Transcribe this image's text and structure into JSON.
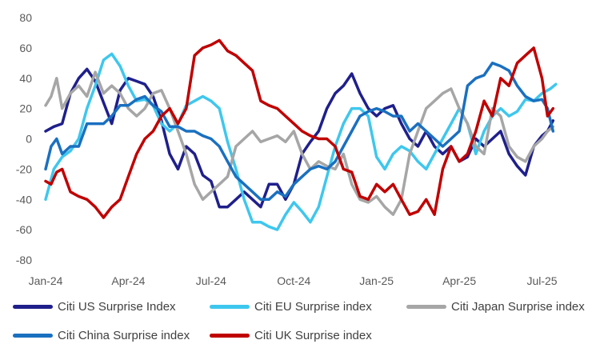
{
  "chart_data": {
    "type": "line",
    "title": "",
    "xlabel": "",
    "ylabel": "",
    "ylim": [
      -80,
      80
    ],
    "yticks": [
      80,
      60,
      40,
      20,
      0,
      -20,
      -40,
      -60,
      -80
    ],
    "xlim": [
      0,
      19
    ],
    "xticks": [
      {
        "label": "Jan-24",
        "x": 0
      },
      {
        "label": "Apr-24",
        "x": 3
      },
      {
        "label": "Jul-24",
        "x": 6
      },
      {
        "label": "Oct-24",
        "x": 9
      },
      {
        "label": "Jan-25",
        "x": 12
      },
      {
        "label": "Apr-25",
        "x": 15
      },
      {
        "label": "Jul-25",
        "x": 18
      }
    ],
    "x_unit": "months since Jan-2024",
    "series": [
      {
        "name": "Citi US Surprise Index",
        "color": "#1f1f8c",
        "points": [
          [
            0,
            5
          ],
          [
            0.3,
            8
          ],
          [
            0.6,
            10
          ],
          [
            0.9,
            30
          ],
          [
            1.2,
            40
          ],
          [
            1.5,
            46
          ],
          [
            1.8,
            38
          ],
          [
            2.1,
            24
          ],
          [
            2.4,
            10
          ],
          [
            2.7,
            32
          ],
          [
            3,
            40
          ],
          [
            3.3,
            38
          ],
          [
            3.6,
            36
          ],
          [
            3.9,
            28
          ],
          [
            4.2,
            12
          ],
          [
            4.5,
            -10
          ],
          [
            4.8,
            -20
          ],
          [
            5.1,
            -5
          ],
          [
            5.4,
            -10
          ],
          [
            5.7,
            -24
          ],
          [
            6,
            -28
          ],
          [
            6.3,
            -45
          ],
          [
            6.6,
            -45
          ],
          [
            6.9,
            -40
          ],
          [
            7.2,
            -35
          ],
          [
            7.5,
            -40
          ],
          [
            7.8,
            -45
          ],
          [
            8.1,
            -30
          ],
          [
            8.4,
            -30
          ],
          [
            8.7,
            -40
          ],
          [
            9,
            -30
          ],
          [
            9.3,
            -10
          ],
          [
            9.6,
            -2
          ],
          [
            9.9,
            5
          ],
          [
            10.2,
            20
          ],
          [
            10.5,
            30
          ],
          [
            10.8,
            35
          ],
          [
            11.1,
            43
          ],
          [
            11.4,
            30
          ],
          [
            11.7,
            20
          ],
          [
            12,
            15
          ],
          [
            12.3,
            20
          ],
          [
            12.6,
            22
          ],
          [
            12.9,
            10
          ],
          [
            13.2,
            0
          ],
          [
            13.5,
            -5
          ],
          [
            13.8,
            5
          ],
          [
            14.1,
            -5
          ],
          [
            14.4,
            -10
          ],
          [
            14.7,
            -5
          ],
          [
            15,
            -15
          ],
          [
            15.3,
            -12
          ],
          [
            15.6,
            0
          ],
          [
            15.9,
            -5
          ],
          [
            16.2,
            0
          ],
          [
            16.5,
            5
          ],
          [
            16.8,
            -10
          ],
          [
            17.1,
            -18
          ],
          [
            17.4,
            -24
          ],
          [
            17.7,
            -5
          ],
          [
            18,
            2
          ],
          [
            18.2,
            5
          ],
          [
            18.4,
            12
          ]
        ]
      },
      {
        "name": "Citi EU Surprise index",
        "color": "#3ec7ee",
        "points": [
          [
            0,
            -40
          ],
          [
            0.3,
            -20
          ],
          [
            0.6,
            -12
          ],
          [
            0.9,
            -8
          ],
          [
            1.2,
            0
          ],
          [
            1.5,
            20
          ],
          [
            1.8,
            35
          ],
          [
            2.1,
            52
          ],
          [
            2.4,
            56
          ],
          [
            2.7,
            48
          ],
          [
            3,
            35
          ],
          [
            3.3,
            25
          ],
          [
            3.6,
            26
          ],
          [
            3.9,
            22
          ],
          [
            4.2,
            10
          ],
          [
            4.5,
            5
          ],
          [
            4.8,
            10
          ],
          [
            5.1,
            22
          ],
          [
            5.4,
            25
          ],
          [
            5.7,
            28
          ],
          [
            6,
            25
          ],
          [
            6.3,
            20
          ],
          [
            6.6,
            -2
          ],
          [
            6.9,
            -20
          ],
          [
            7.2,
            -40
          ],
          [
            7.5,
            -55
          ],
          [
            7.8,
            -55
          ],
          [
            8.1,
            -58
          ],
          [
            8.4,
            -60
          ],
          [
            8.7,
            -50
          ],
          [
            9,
            -42
          ],
          [
            9.3,
            -48
          ],
          [
            9.6,
            -55
          ],
          [
            9.9,
            -45
          ],
          [
            10.2,
            -25
          ],
          [
            10.5,
            -5
          ],
          [
            10.8,
            10
          ],
          [
            11.1,
            20
          ],
          [
            11.4,
            20
          ],
          [
            11.7,
            15
          ],
          [
            12,
            -12
          ],
          [
            12.3,
            -20
          ],
          [
            12.6,
            -10
          ],
          [
            12.9,
            -5
          ],
          [
            13.2,
            -8
          ],
          [
            13.5,
            -15
          ],
          [
            13.8,
            -20
          ],
          [
            14.1,
            -10
          ],
          [
            14.4,
            0
          ],
          [
            14.7,
            10
          ],
          [
            15,
            20
          ],
          [
            15.3,
            10
          ],
          [
            15.6,
            -10
          ],
          [
            15.9,
            5
          ],
          [
            16.2,
            15
          ],
          [
            16.5,
            20
          ],
          [
            16.8,
            15
          ],
          [
            17.1,
            18
          ],
          [
            17.4,
            26
          ],
          [
            17.7,
            25
          ],
          [
            18,
            30
          ],
          [
            18.3,
            33
          ],
          [
            18.5,
            36
          ]
        ]
      },
      {
        "name": "Citi Japan Surprise index",
        "color": "#a6a6a6",
        "points": [
          [
            0,
            22
          ],
          [
            0.2,
            28
          ],
          [
            0.4,
            40
          ],
          [
            0.6,
            20
          ],
          [
            0.9,
            30
          ],
          [
            1.2,
            35
          ],
          [
            1.5,
            28
          ],
          [
            1.8,
            44
          ],
          [
            2.1,
            30
          ],
          [
            2.4,
            35
          ],
          [
            2.7,
            30
          ],
          [
            3,
            20
          ],
          [
            3.3,
            15
          ],
          [
            3.6,
            20
          ],
          [
            3.9,
            30
          ],
          [
            4.2,
            32
          ],
          [
            4.5,
            20
          ],
          [
            4.8,
            5
          ],
          [
            5.1,
            -10
          ],
          [
            5.4,
            -30
          ],
          [
            5.7,
            -40
          ],
          [
            6,
            -35
          ],
          [
            6.3,
            -30
          ],
          [
            6.6,
            -25
          ],
          [
            6.9,
            -5
          ],
          [
            7.2,
            0
          ],
          [
            7.5,
            5
          ],
          [
            7.8,
            -2
          ],
          [
            8.1,
            0
          ],
          [
            8.4,
            2
          ],
          [
            8.7,
            -2
          ],
          [
            9,
            5
          ],
          [
            9.3,
            -10
          ],
          [
            9.6,
            -20
          ],
          [
            9.9,
            -15
          ],
          [
            10.2,
            -18
          ],
          [
            10.5,
            -20
          ],
          [
            10.8,
            -10
          ],
          [
            11.1,
            -30
          ],
          [
            11.4,
            -40
          ],
          [
            11.7,
            -42
          ],
          [
            12,
            -38
          ],
          [
            12.3,
            -45
          ],
          [
            12.6,
            -50
          ],
          [
            12.9,
            -40
          ],
          [
            13.2,
            -10
          ],
          [
            13.5,
            5
          ],
          [
            13.8,
            20
          ],
          [
            14.1,
            25
          ],
          [
            14.4,
            30
          ],
          [
            14.7,
            33
          ],
          [
            15,
            20
          ],
          [
            15.3,
            10
          ],
          [
            15.6,
            -5
          ],
          [
            15.9,
            -10
          ],
          [
            16.2,
            20
          ],
          [
            16.5,
            15
          ],
          [
            16.8,
            -5
          ],
          [
            17.1,
            -12
          ],
          [
            17.4,
            -15
          ],
          [
            17.7,
            -5
          ],
          [
            18,
            0
          ],
          [
            18.2,
            5
          ],
          [
            18.4,
            8
          ]
        ]
      },
      {
        "name": "Citi China Surprise index",
        "color": "#1a70c0",
        "points": [
          [
            0,
            -20
          ],
          [
            0.2,
            -5
          ],
          [
            0.4,
            0
          ],
          [
            0.6,
            -10
          ],
          [
            0.9,
            -5
          ],
          [
            1.2,
            -5
          ],
          [
            1.5,
            10
          ],
          [
            1.8,
            10
          ],
          [
            2.1,
            10
          ],
          [
            2.4,
            15
          ],
          [
            2.7,
            22
          ],
          [
            3,
            22
          ],
          [
            3.3,
            26
          ],
          [
            3.6,
            28
          ],
          [
            3.9,
            22
          ],
          [
            4.2,
            18
          ],
          [
            4.5,
            8
          ],
          [
            4.8,
            8
          ],
          [
            5.1,
            5
          ],
          [
            5.4,
            5
          ],
          [
            5.7,
            2
          ],
          [
            6,
            0
          ],
          [
            6.3,
            -5
          ],
          [
            6.6,
            -15
          ],
          [
            6.9,
            -25
          ],
          [
            7.2,
            -30
          ],
          [
            7.5,
            -35
          ],
          [
            7.8,
            -40
          ],
          [
            8.1,
            -40
          ],
          [
            8.4,
            -35
          ],
          [
            8.7,
            -38
          ],
          [
            9,
            -30
          ],
          [
            9.3,
            -25
          ],
          [
            9.6,
            -20
          ],
          [
            9.9,
            -18
          ],
          [
            10.2,
            -20
          ],
          [
            10.5,
            -15
          ],
          [
            10.8,
            -5
          ],
          [
            11.1,
            5
          ],
          [
            11.4,
            15
          ],
          [
            11.7,
            18
          ],
          [
            12,
            20
          ],
          [
            12.3,
            18
          ],
          [
            12.6,
            15
          ],
          [
            12.9,
            15
          ],
          [
            13.2,
            5
          ],
          [
            13.5,
            10
          ],
          [
            13.8,
            5
          ],
          [
            14.1,
            0
          ],
          [
            14.4,
            -5
          ],
          [
            14.7,
            0
          ],
          [
            15,
            5
          ],
          [
            15.3,
            35
          ],
          [
            15.6,
            40
          ],
          [
            15.9,
            42
          ],
          [
            16.2,
            50
          ],
          [
            16.5,
            48
          ],
          [
            16.8,
            45
          ],
          [
            17.1,
            35
          ],
          [
            17.4,
            28
          ],
          [
            17.7,
            25
          ],
          [
            18,
            26
          ],
          [
            18.2,
            20
          ],
          [
            18.4,
            5
          ]
        ]
      },
      {
        "name": "Citi UK Surprise index",
        "color": "#c00000",
        "points": [
          [
            0,
            -28
          ],
          [
            0.2,
            -30
          ],
          [
            0.4,
            -22
          ],
          [
            0.6,
            -20
          ],
          [
            0.9,
            -35
          ],
          [
            1.2,
            -38
          ],
          [
            1.5,
            -40
          ],
          [
            1.8,
            -45
          ],
          [
            2.1,
            -52
          ],
          [
            2.4,
            -45
          ],
          [
            2.7,
            -40
          ],
          [
            3,
            -25
          ],
          [
            3.3,
            -10
          ],
          [
            3.6,
            0
          ],
          [
            3.9,
            5
          ],
          [
            4.2,
            15
          ],
          [
            4.5,
            20
          ],
          [
            4.8,
            10
          ],
          [
            5.1,
            20
          ],
          [
            5.4,
            55
          ],
          [
            5.7,
            60
          ],
          [
            6,
            62
          ],
          [
            6.3,
            65
          ],
          [
            6.6,
            58
          ],
          [
            6.9,
            55
          ],
          [
            7.2,
            50
          ],
          [
            7.5,
            45
          ],
          [
            7.8,
            25
          ],
          [
            8.1,
            22
          ],
          [
            8.4,
            20
          ],
          [
            8.7,
            15
          ],
          [
            9,
            10
          ],
          [
            9.3,
            5
          ],
          [
            9.6,
            2
          ],
          [
            9.9,
            0
          ],
          [
            10.2,
            0
          ],
          [
            10.5,
            -5
          ],
          [
            10.8,
            -20
          ],
          [
            11.1,
            -22
          ],
          [
            11.4,
            -38
          ],
          [
            11.7,
            -40
          ],
          [
            12,
            -30
          ],
          [
            12.3,
            -35
          ],
          [
            12.6,
            -30
          ],
          [
            12.9,
            -40
          ],
          [
            13.2,
            -50
          ],
          [
            13.5,
            -48
          ],
          [
            13.8,
            -40
          ],
          [
            14.1,
            -50
          ],
          [
            14.4,
            -20
          ],
          [
            14.7,
            -5
          ],
          [
            15,
            -15
          ],
          [
            15.3,
            -10
          ],
          [
            15.6,
            5
          ],
          [
            15.9,
            25
          ],
          [
            16.2,
            15
          ],
          [
            16.5,
            40
          ],
          [
            16.8,
            35
          ],
          [
            17.1,
            50
          ],
          [
            17.4,
            55
          ],
          [
            17.7,
            60
          ],
          [
            18,
            40
          ],
          [
            18.2,
            15
          ],
          [
            18.4,
            20
          ]
        ]
      }
    ]
  }
}
